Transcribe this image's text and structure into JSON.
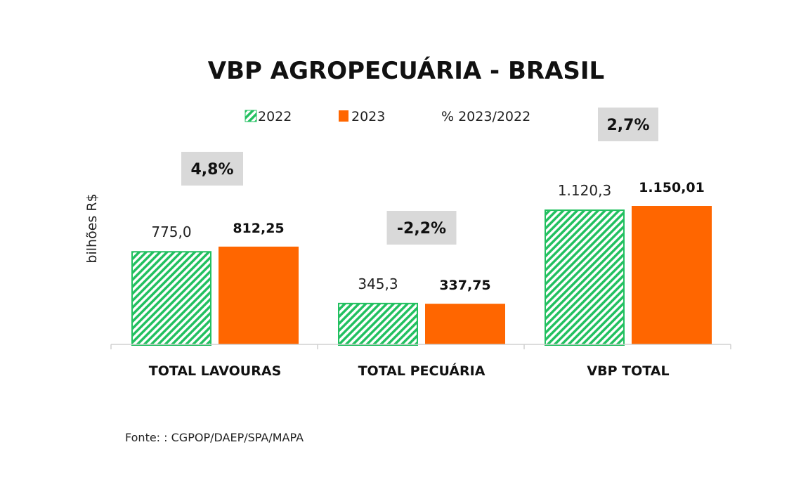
{
  "chart_data": {
    "type": "bar",
    "title": "VBP AGROPECUÁRIA - BRASIL",
    "ylabel": "bilhões R$",
    "categories": [
      "TOTAL LAVOURAS",
      "TOTAL PECUÁRIA",
      "VBP TOTAL"
    ],
    "series": [
      {
        "name": "2022",
        "values": [
          775.0,
          345.3,
          1120.3
        ],
        "labels": [
          "775,0",
          "345,3",
          "1.120,3"
        ],
        "color": "#22c060",
        "pattern": "diagonal-hatch"
      },
      {
        "name": "2023",
        "values": [
          812.25,
          337.75,
          1150.01
        ],
        "labels": [
          "812,25",
          "337,75",
          "1.150,01"
        ],
        "color": "#ff6600"
      }
    ],
    "change_series": {
      "name": "% 2023/2022",
      "labels": [
        "4,8%",
        "-2,2%",
        "2,7%"
      ],
      "box_color": "#d9d9d9"
    },
    "ylim": [
      0,
      1150.01
    ],
    "grid": false,
    "legend_position": "top",
    "source": "Fonte: : CGPOP/DAEP/SPA/MAPA"
  }
}
